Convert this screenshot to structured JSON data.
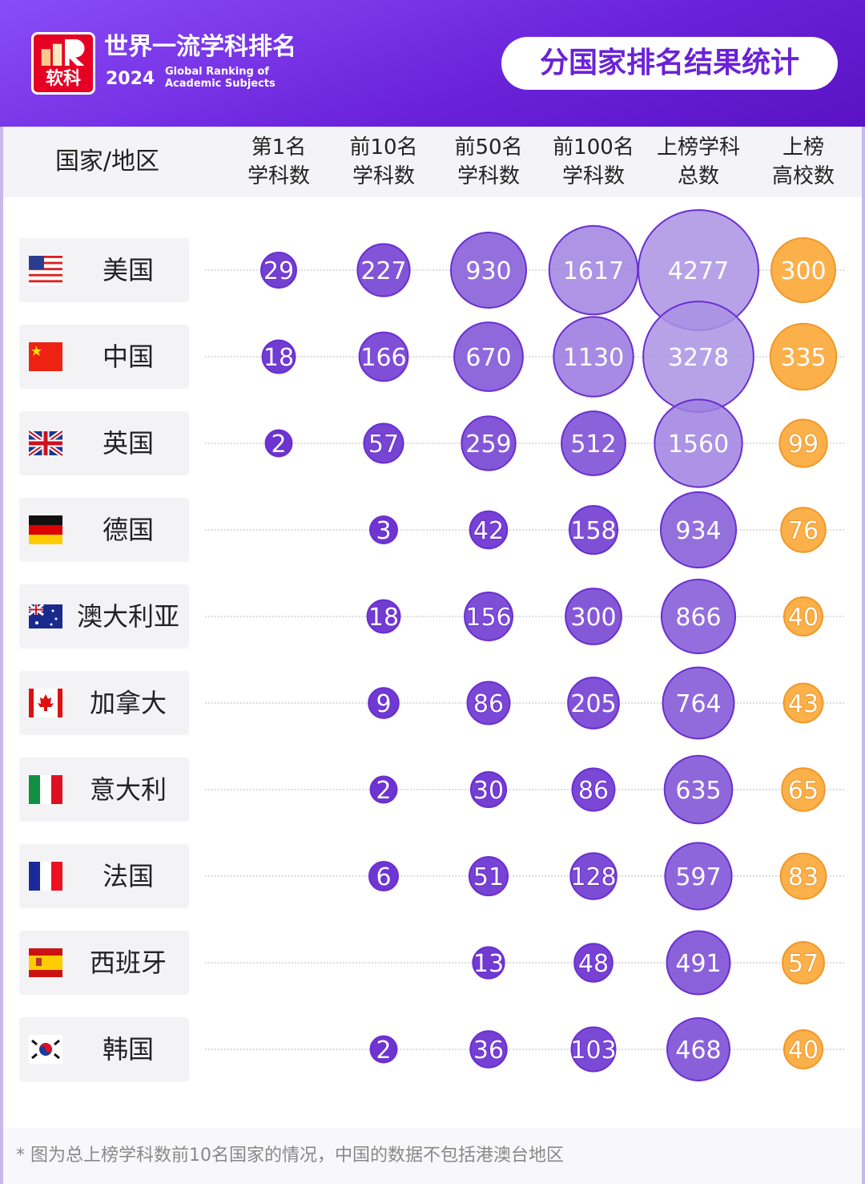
{
  "header": {
    "logo_text": "软科",
    "title_cn": "世界一流学科排名",
    "year": "2024",
    "title_en": "Global Ranking of Academic Subjects",
    "badge": "分国家排名结果统计"
  },
  "colors": {
    "purple_dark": "#6a2fd0",
    "purple_light": "#a88ee6",
    "orange": "#fbb04a",
    "header_bg": "#7a34ec"
  },
  "chart_data": {
    "type": "bubble-table",
    "row_header": "国家/地区",
    "columns": [
      "第1名\n学科数",
      "前10名\n学科数",
      "前50名\n学科数",
      "前100名\n学科数",
      "上榜学科\n总数",
      "上榜\n高校数"
    ],
    "rows": [
      {
        "country": "美国",
        "flag": "us",
        "values": [
          29,
          227,
          930,
          1617,
          4277,
          300
        ]
      },
      {
        "country": "中国",
        "flag": "cn",
        "values": [
          18,
          166,
          670,
          1130,
          3278,
          335
        ]
      },
      {
        "country": "英国",
        "flag": "gb",
        "values": [
          2,
          57,
          259,
          512,
          1560,
          99
        ]
      },
      {
        "country": "德国",
        "flag": "de",
        "values": [
          null,
          3,
          42,
          158,
          934,
          76
        ]
      },
      {
        "country": "澳大利亚",
        "flag": "au",
        "values": [
          null,
          18,
          156,
          300,
          866,
          40
        ]
      },
      {
        "country": "加拿大",
        "flag": "ca",
        "values": [
          null,
          9,
          86,
          205,
          764,
          43
        ]
      },
      {
        "country": "意大利",
        "flag": "it",
        "values": [
          null,
          2,
          30,
          86,
          635,
          65
        ]
      },
      {
        "country": "法国",
        "flag": "fr",
        "values": [
          null,
          6,
          51,
          128,
          597,
          83
        ]
      },
      {
        "country": "西班牙",
        "flag": "es",
        "values": [
          null,
          null,
          13,
          48,
          491,
          57
        ]
      },
      {
        "country": "韩国",
        "flag": "kr",
        "values": [
          null,
          2,
          36,
          103,
          468,
          40
        ]
      }
    ]
  },
  "footnote": "* 图为总上榜学科数前10名国家的情况，中国的数据不包括港澳台地区"
}
